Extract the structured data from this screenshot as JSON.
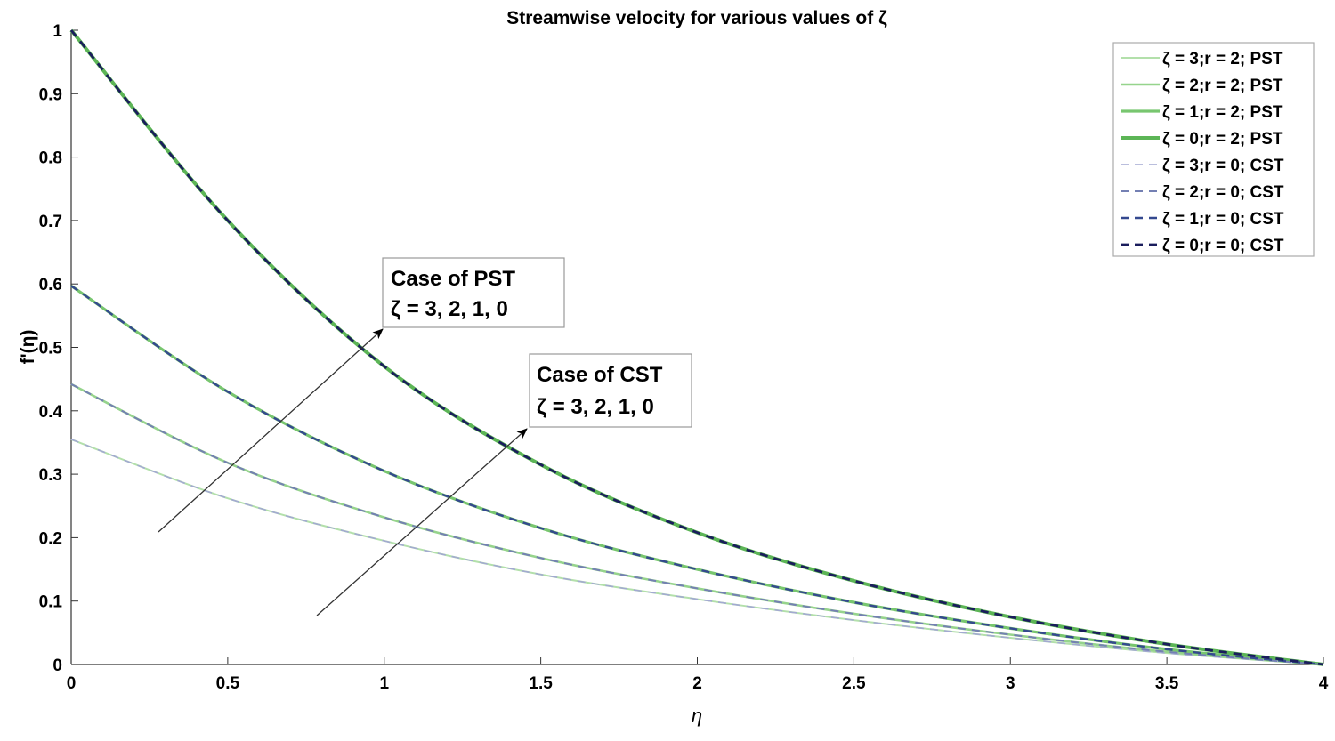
{
  "chart_data": {
    "type": "line",
    "title": "Streamwise velocity for various values of ζ",
    "xlabel": "η",
    "ylabel": "f'(η)",
    "xlim": [
      0,
      4
    ],
    "ylim": [
      0,
      1
    ],
    "xticks": [
      "0",
      "0.5",
      "1",
      "1.5",
      "2",
      "2.5",
      "3",
      "3.5",
      "4"
    ],
    "yticks": [
      "0",
      "0.1",
      "0.2",
      "0.3",
      "0.4",
      "0.5",
      "0.6",
      "0.7",
      "0.8",
      "0.9",
      "1"
    ],
    "grid": false,
    "legend_position": "top-right",
    "x": [
      0,
      0.5,
      1,
      1.5,
      2,
      2.5,
      3,
      3.5,
      4
    ],
    "series": [
      {
        "name": "ζ = 3;r = 2; PST",
        "color": "#b3e0ab",
        "style": "solid",
        "values": [
          0.355,
          0.262,
          0.195,
          0.142,
          0.103,
          0.07,
          0.042,
          0.018,
          0
        ]
      },
      {
        "name": "ζ = 2;r = 2; PST",
        "color": "#96d48c",
        "style": "solid",
        "values": [
          0.442,
          0.318,
          0.232,
          0.168,
          0.12,
          0.08,
          0.047,
          0.02,
          0
        ]
      },
      {
        "name": "ζ = 1;r = 2; PST",
        "color": "#78c66f",
        "style": "solid",
        "values": [
          0.597,
          0.43,
          0.305,
          0.215,
          0.15,
          0.098,
          0.057,
          0.024,
          0
        ]
      },
      {
        "name": "ζ = 0;r = 2; PST",
        "color": "#5cb556",
        "style": "solid",
        "values": [
          1,
          0.7,
          0.47,
          0.315,
          0.208,
          0.132,
          0.075,
          0.032,
          0
        ]
      },
      {
        "name": "ζ = 3;r = 0; CST",
        "color": "#a3a9d2",
        "style": "dashed",
        "values": [
          0.355,
          0.262,
          0.195,
          0.142,
          0.103,
          0.07,
          0.042,
          0.018,
          0
        ]
      },
      {
        "name": "ζ = 2;r = 0; CST",
        "color": "#7480b3",
        "style": "dashed",
        "values": [
          0.442,
          0.318,
          0.232,
          0.168,
          0.12,
          0.08,
          0.047,
          0.02,
          0
        ]
      },
      {
        "name": "ζ = 1;r = 0; CST",
        "color": "#34498f",
        "style": "dashed",
        "values": [
          0.597,
          0.43,
          0.305,
          0.215,
          0.15,
          0.098,
          0.057,
          0.024,
          0
        ]
      },
      {
        "name": "ζ = 0;r = 0; CST",
        "color": "#1a1d5c",
        "style": "dashed",
        "values": [
          1,
          0.7,
          0.47,
          0.315,
          0.208,
          0.132,
          0.075,
          0.032,
          0
        ]
      }
    ],
    "annotations": [
      {
        "line1": "Case of PST",
        "line2": "ζ = 3, 2, 1, 0"
      },
      {
        "line1": "Case of CST",
        "line2": "ζ = 3, 2, 1, 0"
      }
    ]
  }
}
